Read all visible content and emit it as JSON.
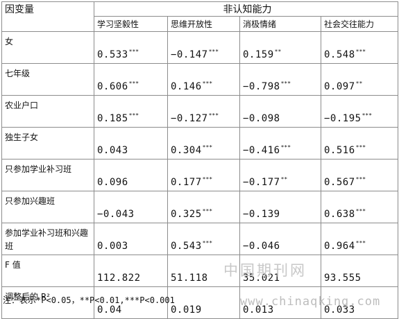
{
  "table": {
    "dv_header": "因变量",
    "group_header": "非认知能力",
    "columns": [
      "学习坚毅性",
      "思维开放性",
      "消极情绪",
      "社会交往能力"
    ],
    "rows": [
      {
        "label": "女",
        "values": [
          {
            "v": "0.533",
            "s": "***"
          },
          {
            "v": "−0.147",
            "s": "***"
          },
          {
            "v": "0.159",
            "s": "**"
          },
          {
            "v": "0.548",
            "s": "***"
          }
        ]
      },
      {
        "label": "七年级",
        "values": [
          {
            "v": "0.606",
            "s": "***"
          },
          {
            "v": "0.146",
            "s": "***"
          },
          {
            "v": "−0.798",
            "s": "***"
          },
          {
            "v": "0.097",
            "s": "**"
          }
        ]
      },
      {
        "label": "农业户口",
        "values": [
          {
            "v": "0.185",
            "s": "***"
          },
          {
            "v": "−0.127",
            "s": "***"
          },
          {
            "v": "−0.098",
            "s": ""
          },
          {
            "v": "−0.195",
            "s": "***"
          }
        ]
      },
      {
        "label": "独生子女",
        "values": [
          {
            "v": "0.043",
            "s": ""
          },
          {
            "v": "0.304",
            "s": "***"
          },
          {
            "v": "−0.416",
            "s": "***"
          },
          {
            "v": "0.516",
            "s": "***"
          }
        ]
      },
      {
        "label": "只参加学业补习班",
        "values": [
          {
            "v": "0.096",
            "s": ""
          },
          {
            "v": "0.177",
            "s": "***"
          },
          {
            "v": "−0.177",
            "s": "**"
          },
          {
            "v": "0.567",
            "s": "***"
          }
        ]
      },
      {
        "label": "只参加兴趣班",
        "values": [
          {
            "v": "−0.043",
            "s": ""
          },
          {
            "v": "0.325",
            "s": "***"
          },
          {
            "v": "−0.139",
            "s": ""
          },
          {
            "v": "0.638",
            "s": "***"
          }
        ]
      },
      {
        "label": "参加学业补习班和兴趣班",
        "values": [
          {
            "v": "0.003",
            "s": ""
          },
          {
            "v": "0.543",
            "s": "***"
          },
          {
            "v": "−0.046",
            "s": ""
          },
          {
            "v": "0.964",
            "s": "***"
          }
        ]
      },
      {
        "label": "F 值",
        "values": [
          {
            "v": "112.822",
            "s": ""
          },
          {
            "v": "51.118",
            "s": ""
          },
          {
            "v": "35.021",
            "s": ""
          },
          {
            "v": "93.555",
            "s": ""
          }
        ]
      },
      {
        "label": "调整后的 R²",
        "values": [
          {
            "v": "0.04",
            "s": ""
          },
          {
            "v": "0.019",
            "s": ""
          },
          {
            "v": "0.013",
            "s": ""
          },
          {
            "v": "0.033",
            "s": ""
          }
        ]
      }
    ]
  },
  "note": {
    "prefix": "注：表示",
    "text": "*P<0.05，**P<0.01,***P<0.001"
  },
  "watermark": {
    "cn": "中国期刊网",
    "url": "www.chinaqking.com"
  }
}
